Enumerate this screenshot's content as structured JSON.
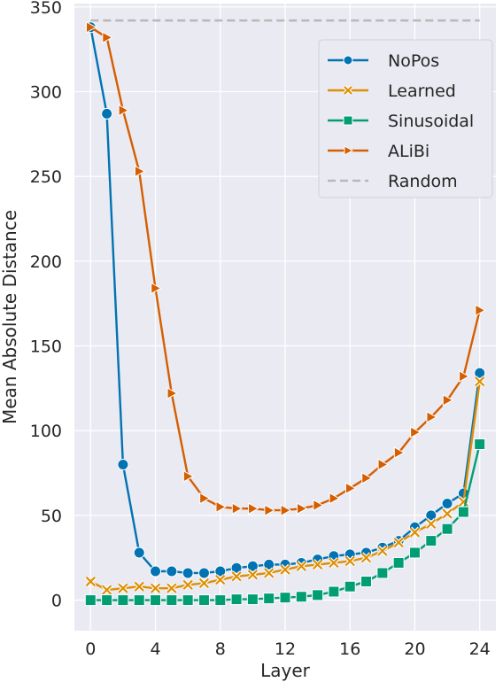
{
  "chart_data": {
    "type": "line",
    "title": "",
    "xlabel": "Layer",
    "ylabel": "Mean Absolute Distance",
    "xlim": [
      -1,
      25
    ],
    "ylim": [
      -18,
      352
    ],
    "xticks": [
      "0",
      "4",
      "8",
      "12",
      "16",
      "20",
      "24"
    ],
    "yticks": [
      "0",
      "50",
      "100",
      "150",
      "200",
      "250",
      "300",
      "350"
    ],
    "grid": true,
    "legend_position": "top-right",
    "x": [
      0,
      1,
      2,
      3,
      4,
      5,
      6,
      7,
      8,
      9,
      10,
      11,
      12,
      13,
      14,
      15,
      16,
      17,
      18,
      19,
      20,
      21,
      22,
      23,
      24
    ],
    "series": [
      {
        "name": "NoPos",
        "color": "#0173b2",
        "marker": "circle",
        "values": [
          338,
          287,
          80,
          28,
          17,
          17,
          16,
          16,
          17,
          19,
          20,
          21,
          21,
          22,
          24,
          26,
          27,
          28,
          31,
          35,
          43,
          50,
          57,
          63,
          134
        ]
      },
      {
        "name": "Learned",
        "color": "#de8f05",
        "marker": "x",
        "values": [
          11,
          6,
          7,
          8,
          7,
          7,
          9,
          10,
          12,
          14,
          15,
          16,
          18,
          20,
          21,
          22,
          23,
          25,
          29,
          34,
          40,
          45,
          51,
          58,
          129
        ]
      },
      {
        "name": "Sinusoidal",
        "color": "#029e73",
        "marker": "square",
        "values": [
          0,
          0,
          0,
          0,
          0,
          0,
          0,
          0,
          0,
          0.5,
          0.5,
          1,
          1.5,
          2,
          3,
          5,
          8,
          11,
          16,
          22,
          28,
          35,
          42,
          52,
          92
        ]
      },
      {
        "name": "ALiBi",
        "color": "#d55e00",
        "marker": "triangle-right",
        "values": [
          338,
          332,
          289,
          253,
          184,
          122,
          73,
          60,
          55,
          54,
          54,
          53,
          53,
          54,
          56,
          60,
          66,
          72,
          80,
          87,
          99,
          108,
          118,
          132,
          171
        ]
      },
      {
        "name": "Random",
        "color": "#b8b8b8",
        "marker": "none",
        "style": "dashed",
        "values": [
          342,
          342,
          342,
          342,
          342,
          342,
          342,
          342,
          342,
          342,
          342,
          342,
          342,
          342,
          342,
          342,
          342,
          342,
          342,
          342,
          342,
          342,
          342,
          342,
          342
        ]
      }
    ]
  }
}
